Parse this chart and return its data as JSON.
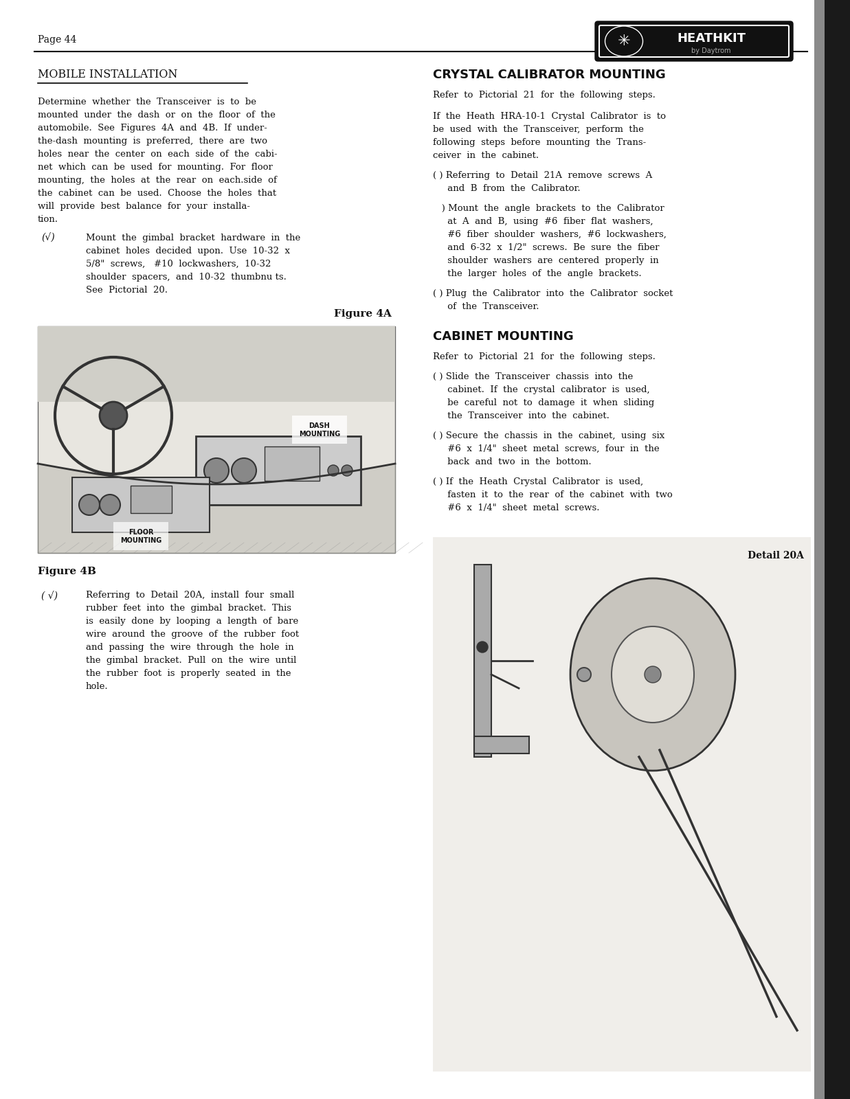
{
  "page_num": "Page 44",
  "bg_color": "#ffffff",
  "text_color": "#111111",
  "section1_title": "MOBILE INSTALLATION",
  "section2_title": "CRYSTAL CALIBRATOR MOUNTING",
  "section3_title": "CABINET MOUNTING",
  "fig4a_label": "Figure 4A",
  "fig4b_label": "Figure 4B",
  "detail20a_label": "Detail 20A",
  "para1_lines": [
    "Determine  whether  the  Transceiver  is  to  be",
    "mounted  under  the  dash  or  on  the  floor  of  the",
    "automobile.  See  Figures  4A  and  4B.  If  under-",
    "the-dash  mounting  is  preferred,  there  are  two",
    "holes  near  the  center  on  each  side  of  the  cabi-",
    "net  which  can  be  used  for  mounting.  For  floor",
    "mounting,  the  holes  at  the  rear  on  each.side  of",
    "the  cabinet  can  be  used.  Choose  the  holes  that",
    "will  provide  best  balance  for  your  installa-",
    "tion."
  ],
  "step1_lines": [
    "Mount  the  gimbal  bracket  hardware  in  the",
    "cabinet  holes  decided  upon.  Use  10-32  x",
    "5/8\"  screws,   #10  lockwashers,  10-32",
    "shoulder  spacers,  and  10-32  thumbnu ts.",
    "See  Pictorial  20."
  ],
  "step2_lines": [
    "Referring  to  Detail  20A,  install  four  small",
    "rubber  feet  into  the  gimbal  bracket.  This",
    "is  easily  done  by  looping  a  length  of  bare",
    "wire  around  the  groove  of  the  rubber  foot",
    "and  passing  the  wire  through  the  hole  in",
    "the  gimbal  bracket.  Pull  on  the  wire  until",
    "the  rubber  foot  is  properly  seated  in  the",
    "hole."
  ],
  "r_para1": "Refer  to  Pictorial  21  for  the  following  steps.",
  "r_para2_lines": [
    "If  the  Heath  HRA-10-1  Crystal  Calibrator  is  to",
    "be  used  with  the  Transceiver,  perform  the",
    "following  steps  before  mounting  the  Trans-",
    "ceiver  in  the  cabinet."
  ],
  "r_step1_lines": [
    "( ) Referring  to  Detail  21A  remove  screws  A",
    "     and  B  from  the  Calibrator."
  ],
  "r_step2_lines": [
    "   ) Mount  the  angle  brackets  to  the  Calibrator",
    "     at  A  and  B,  using  #6  fiber  flat  washers,",
    "     #6  fiber  shoulder  washers,  #6  lockwashers,",
    "     and  6-32  x  1/2\"  screws.  Be  sure  the  fiber",
    "     shoulder  washers  are  centered  properly  in",
    "     the  larger  holes  of  the  angle  brackets."
  ],
  "r_step3_lines": [
    "( ) Plug  the  Calibrator  into  the  Calibrator  socket",
    "     of  the  Transceiver."
  ],
  "r_para3": "Refer  to  Pictorial  21  for  the  following  steps.",
  "r_step4_lines": [
    "( ) Slide  the  Transceiver  chassis  into  the",
    "     cabinet.  If  the  crystal  calibrator  is  used,",
    "     be  careful  not  to  damage  it  when  sliding",
    "     the  Transceiver  into  the  cabinet."
  ],
  "r_step5_lines": [
    "( ) Secure  the  chassis  in  the  cabinet,  using  six",
    "     #6  x  1/4\"  sheet  metal  screws,  four  in  the",
    "     back  and  two  in  the  bottom."
  ],
  "r_step6_lines": [
    "( ) If  the  Heath  Crystal  Calibrator  is  used,",
    "     fasten  it  to  the  rear  of  the  cabinet  with  two",
    "     #6  x  1/4\"  sheet  metal  screws."
  ]
}
